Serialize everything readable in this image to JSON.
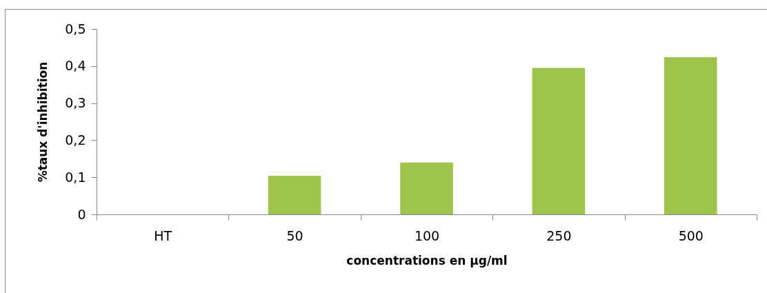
{
  "chart_data": {
    "type": "bar",
    "xlabel": "concentrations en µg/ml",
    "ylabel": "%taux d'inhibition",
    "categories": [
      "HT",
      "50",
      "100",
      "250",
      "500"
    ],
    "values": [
      null,
      0.104,
      0.14,
      0.395,
      0.424
    ],
    "color": "#9cc34b",
    "ylim": [
      0,
      0.5
    ],
    "yticks": [
      0,
      {
        "value": 0.1,
        "label": "0,1"
      },
      {
        "value": 0.2,
        "label": "0,2"
      },
      {
        "value": 0.3,
        "label": "0,3"
      },
      {
        "value": 0.4,
        "label": "0,4"
      },
      {
        "value": 0.5,
        "label": "0,5"
      }
    ]
  }
}
